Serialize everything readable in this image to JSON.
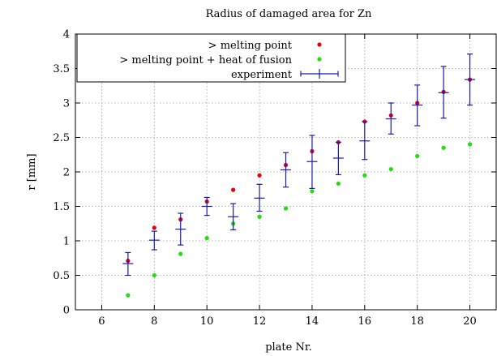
{
  "chart_data": {
    "type": "scatter",
    "title": "Radius of damaged area for Zn",
    "xlabel": "plate Nr.",
    "ylabel": "r [mm]",
    "xlim": [
      5,
      21
    ],
    "ylim": [
      0,
      4
    ],
    "xticks": [
      "6",
      "8",
      "10",
      "12",
      "14",
      "16",
      "18",
      "20"
    ],
    "xtick_values": [
      6,
      8,
      10,
      12,
      14,
      16,
      18,
      20
    ],
    "yticks": [
      "0",
      "0.5",
      "1",
      "1.5",
      "2",
      "2.5",
      "3",
      "3.5",
      "4"
    ],
    "ytick_values": [
      0,
      0.5,
      1,
      1.5,
      2,
      2.5,
      3,
      3.5,
      4
    ],
    "grid": true,
    "legend_position": "top-left",
    "series": [
      {
        "name": "> melting point",
        "color": "#e8000b",
        "marker": "dot",
        "x": [
          7,
          8,
          9,
          10,
          11,
          12,
          13,
          14,
          15,
          16,
          17,
          18,
          19,
          20
        ],
        "y": [
          0.71,
          1.19,
          1.31,
          1.57,
          1.74,
          1.95,
          2.1,
          2.3,
          2.43,
          2.73,
          2.82,
          3.0,
          3.16,
          3.34
        ]
      },
      {
        "name": "> melting point + heat of fusion",
        "color": "#22dd11",
        "marker": "dot",
        "x": [
          7,
          8,
          9,
          10,
          11,
          12,
          13,
          14,
          15,
          16,
          17,
          18,
          19,
          20
        ],
        "y": [
          0.21,
          0.5,
          0.81,
          1.04,
          1.25,
          1.35,
          1.47,
          1.72,
          1.83,
          1.95,
          2.04,
          2.23,
          2.35,
          2.4
        ]
      },
      {
        "name": "experiment",
        "color": "#1a1ab0",
        "marker": "cross-errorbar",
        "x": [
          7,
          8,
          9,
          10,
          11,
          12,
          13,
          14,
          15,
          16,
          17,
          18,
          19,
          20
        ],
        "y": [
          0.67,
          1.01,
          1.17,
          1.5,
          1.35,
          1.62,
          2.03,
          2.15,
          2.2,
          2.45,
          2.77,
          2.97,
          3.15,
          3.34
        ],
        "yerr_low": [
          0.5,
          0.87,
          0.94,
          1.37,
          1.16,
          1.43,
          1.78,
          1.76,
          1.96,
          2.18,
          2.55,
          2.67,
          2.78,
          2.97
        ],
        "yerr_high": [
          0.83,
          1.14,
          1.4,
          1.63,
          1.54,
          1.82,
          2.28,
          2.53,
          2.43,
          2.73,
          3.0,
          3.26,
          3.53,
          3.71
        ]
      }
    ]
  }
}
